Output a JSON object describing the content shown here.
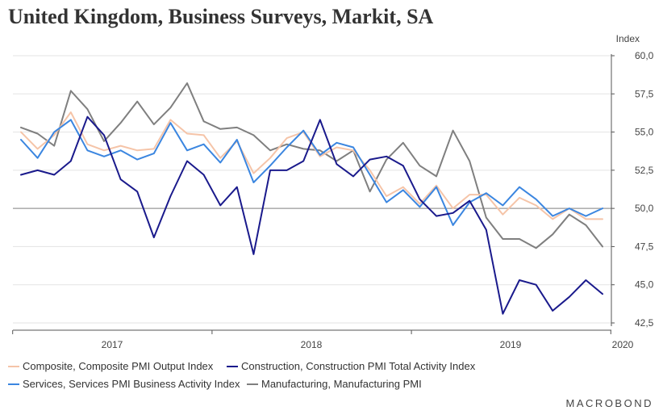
{
  "title": "United Kingdom, Business Surveys, Markit, SA",
  "brand": "MACROBOND",
  "chart_data": {
    "type": "line",
    "ylabel": "Index",
    "ylim": [
      42.5,
      60.0
    ],
    "yticks": [
      "60,0",
      "57,5",
      "55,0",
      "52,5",
      "50,0",
      "47,5",
      "45,0",
      "42,5"
    ],
    "ytick_values": [
      60.0,
      57.5,
      55.0,
      52.5,
      50.0,
      47.5,
      45.0,
      42.5
    ],
    "reference_line": 50.0,
    "grid": true,
    "legend_position": "bottom-left",
    "x_labels": [
      "2017",
      "2018",
      "2019",
      "2020"
    ],
    "x_label_positions": [
      0,
      12,
      24,
      36
    ],
    "x_start": "2016-07",
    "series": [
      {
        "name": "Composite, Composite PMI Output Index",
        "color": "#f5c4a8",
        "values": [
          55.0,
          53.9,
          54.8,
          56.3,
          54.2,
          53.8,
          54.1,
          53.8,
          53.9,
          55.8,
          54.9,
          54.8,
          53.3,
          54.4,
          52.3,
          53.3,
          54.6,
          55.0,
          53.4,
          54.0,
          53.8,
          52.5,
          50.8,
          51.4,
          50.3,
          51.5,
          50.0,
          50.9,
          50.9,
          49.6,
          50.7,
          50.2,
          49.3,
          50.0,
          49.3,
          49.3
        ]
      },
      {
        "name": "Construction, Construction PMI Total Activity Index",
        "color": "#1a1a8c",
        "values": [
          52.2,
          52.5,
          52.2,
          53.1,
          56.0,
          54.8,
          51.9,
          51.1,
          48.1,
          50.8,
          53.1,
          52.2,
          50.2,
          51.4,
          47.0,
          52.5,
          52.5,
          53.1,
          55.8,
          52.9,
          52.1,
          53.2,
          53.4,
          52.8,
          50.6,
          49.5,
          49.7,
          50.5,
          48.6,
          43.1,
          45.3,
          45.0,
          43.3,
          44.2,
          45.3,
          44.4
        ]
      },
      {
        "name": "Services, Services PMI Business Activity Index",
        "color": "#3b86e0",
        "values": [
          54.5,
          53.3,
          55.0,
          55.8,
          53.8,
          53.4,
          53.8,
          53.2,
          53.6,
          55.6,
          53.8,
          54.2,
          53.0,
          54.5,
          51.7,
          52.8,
          54.0,
          55.1,
          53.5,
          54.3,
          54.0,
          52.2,
          50.4,
          51.2,
          50.1,
          51.4,
          48.9,
          50.4,
          51.0,
          50.2,
          51.4,
          50.6,
          49.5,
          50.0,
          49.5,
          50.0
        ]
      },
      {
        "name": "Manufacturing, Manufacturing PMI",
        "color": "#7f7f7f",
        "values": [
          55.3,
          54.9,
          54.1,
          57.7,
          56.5,
          54.4,
          55.6,
          57.0,
          55.5,
          56.6,
          58.2,
          55.7,
          55.2,
          55.3,
          54.8,
          53.8,
          54.2,
          53.9,
          53.8,
          53.1,
          53.8,
          51.1,
          53.2,
          54.3,
          52.8,
          52.1,
          55.1,
          53.1,
          49.4,
          48.0,
          48.0,
          47.4,
          48.3,
          49.6,
          48.9,
          47.5
        ]
      }
    ]
  }
}
